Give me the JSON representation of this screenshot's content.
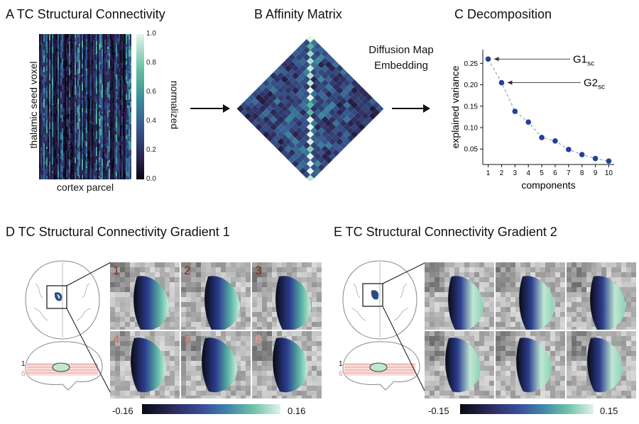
{
  "panels": {
    "a": {
      "title": "A  TC Structural Connectivity",
      "ylabel": "thalamic seed voxel",
      "xlabel": "cortex parcel",
      "colorbar_label": "normalized",
      "colorbar_ticks": [
        "1.0",
        "0.8",
        "0.6",
        "0.4",
        "0.2",
        "0.0"
      ]
    },
    "b": {
      "title": "B  Affinity Matrix",
      "annotation": [
        "Diffusion Map",
        "Embedding"
      ]
    },
    "c": {
      "title": "C  Decomposition"
    },
    "d": {
      "title": "D  TC Structural Connectivity Gradient 1",
      "slice_labels": [
        "1",
        "2",
        "3",
        "4",
        "5",
        "6"
      ],
      "slice_colors": [
        "#8a2b1a",
        "#8a2b1a",
        "#8a2b1a",
        "#d0694f",
        "#d0694f",
        "#e8a08a"
      ],
      "colorbar_min": "-0.16",
      "colorbar_max": "0.16",
      "axial_marks": [
        "1",
        "6"
      ]
    },
    "e": {
      "title": "E  TC Structural Connectivity Gradient 2",
      "colorbar_min": "-0.15",
      "colorbar_max": "0.15",
      "axial_marks": [
        "1",
        "6"
      ]
    }
  },
  "colors": {
    "gradient_low": "#0a0a14",
    "gradient_mid": "#3a4fa0",
    "gradient_high": "#bfe8d2",
    "scatter": "#24409a"
  },
  "chart_data": {
    "type": "scatter",
    "xlabel": "components",
    "ylabel": "explained variance",
    "x": [
      1,
      2,
      3,
      4,
      5,
      6,
      7,
      8,
      9,
      10
    ],
    "values": [
      0.26,
      0.205,
      0.138,
      0.113,
      0.077,
      0.069,
      0.049,
      0.037,
      0.028,
      0.022
    ],
    "xticks": [
      "1",
      "2",
      "3",
      "4",
      "5",
      "6",
      "7",
      "8",
      "9",
      "10"
    ],
    "yticks": [
      "0.05",
      "0.10",
      "0.15",
      "0.20",
      "0.25"
    ],
    "ytick_values": [
      0.05,
      0.1,
      0.15,
      0.2,
      0.25
    ],
    "ylim": [
      0.014,
      0.282
    ],
    "xlim": [
      0.6,
      10.4
    ],
    "annotations": [
      {
        "base": "G1",
        "sub": "sc",
        "point": 1
      },
      {
        "base": "G2",
        "sub": "sc",
        "point": 2
      }
    ]
  }
}
